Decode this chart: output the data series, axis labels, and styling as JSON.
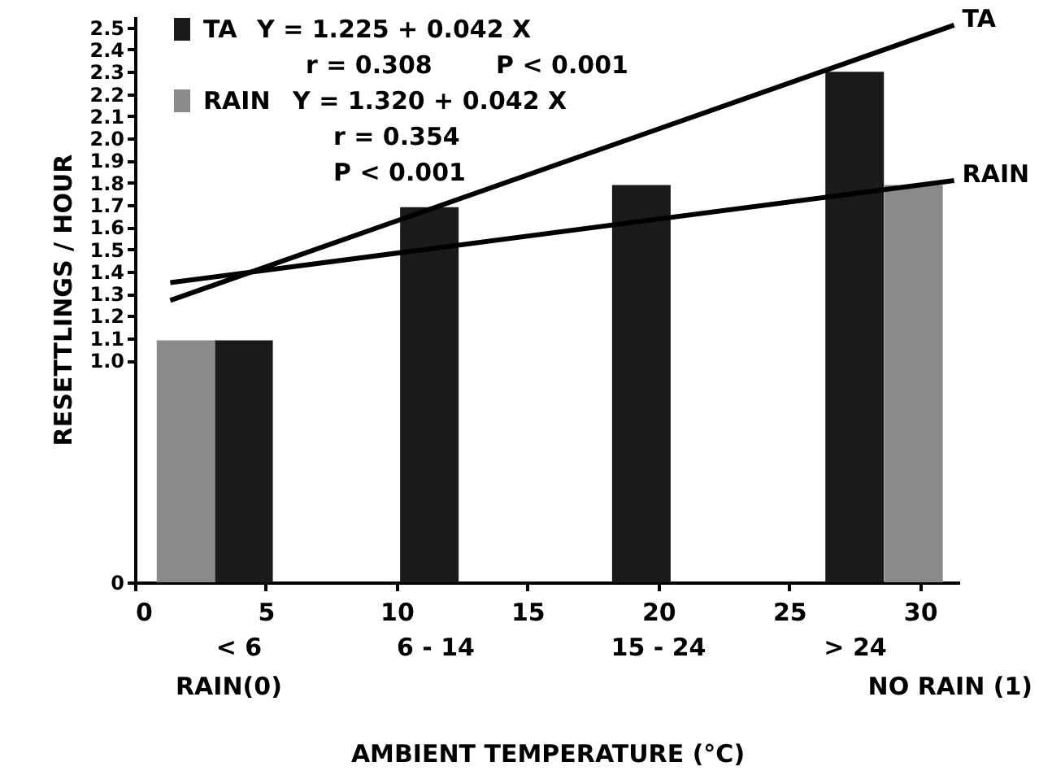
{
  "chart_data": {
    "type": "bar",
    "xlabel": "AMBIENT  TEMPERATURE  (°C)",
    "ylabel": "RESETTLINGS / HOUR",
    "xlim": [
      0,
      31.5
    ],
    "xticks": [
      0,
      5,
      10,
      15,
      20,
      25,
      30
    ],
    "ylim": [
      0,
      2.55
    ],
    "yticks": [
      0,
      {
        "value": 1.0,
        "label": "1.0"
      },
      1.1,
      1.2,
      1.3,
      1.4,
      1.5,
      1.6,
      1.7,
      1.8,
      1.9,
      {
        "value": 2.0,
        "label": "2.0"
      },
      2.1,
      2.2,
      2.3,
      2.4,
      2.5
    ],
    "grid": false,
    "legend": "top left",
    "series": [
      {
        "name": "TA",
        "color": "#1a1a1a",
        "x": [
          4.15,
          11.25,
          19.35,
          27.5
        ],
        "values": [
          1.09,
          1.69,
          1.79,
          2.3
        ]
      },
      {
        "name": "RAIN",
        "color": "#8a8a8a",
        "x": [
          1.95,
          29.75
        ],
        "values": [
          1.09,
          1.79
        ]
      },
      {
        "name": "TA",
        "type": "line",
        "color": "#000000",
        "x": [
          1.35,
          31.3
        ],
        "values": [
          1.27,
          2.51
        ]
      },
      {
        "name": "RAIN",
        "type": "line",
        "color": "#000000",
        "x": [
          1.35,
          31.3
        ],
        "values": [
          1.35,
          1.81
        ]
      }
    ],
    "annotations": [
      "Y = 1.225 + 0.042 X",
      "r = 0.308",
      "P < 0.001",
      "Y = 1.320 + 0.042 X",
      "r = 0.354",
      "P < 0.001",
      "< 6",
      "6 - 14",
      "15 - 24",
      "> 24",
      "RAIN(0)",
      "NO RAIN (1)"
    ]
  }
}
